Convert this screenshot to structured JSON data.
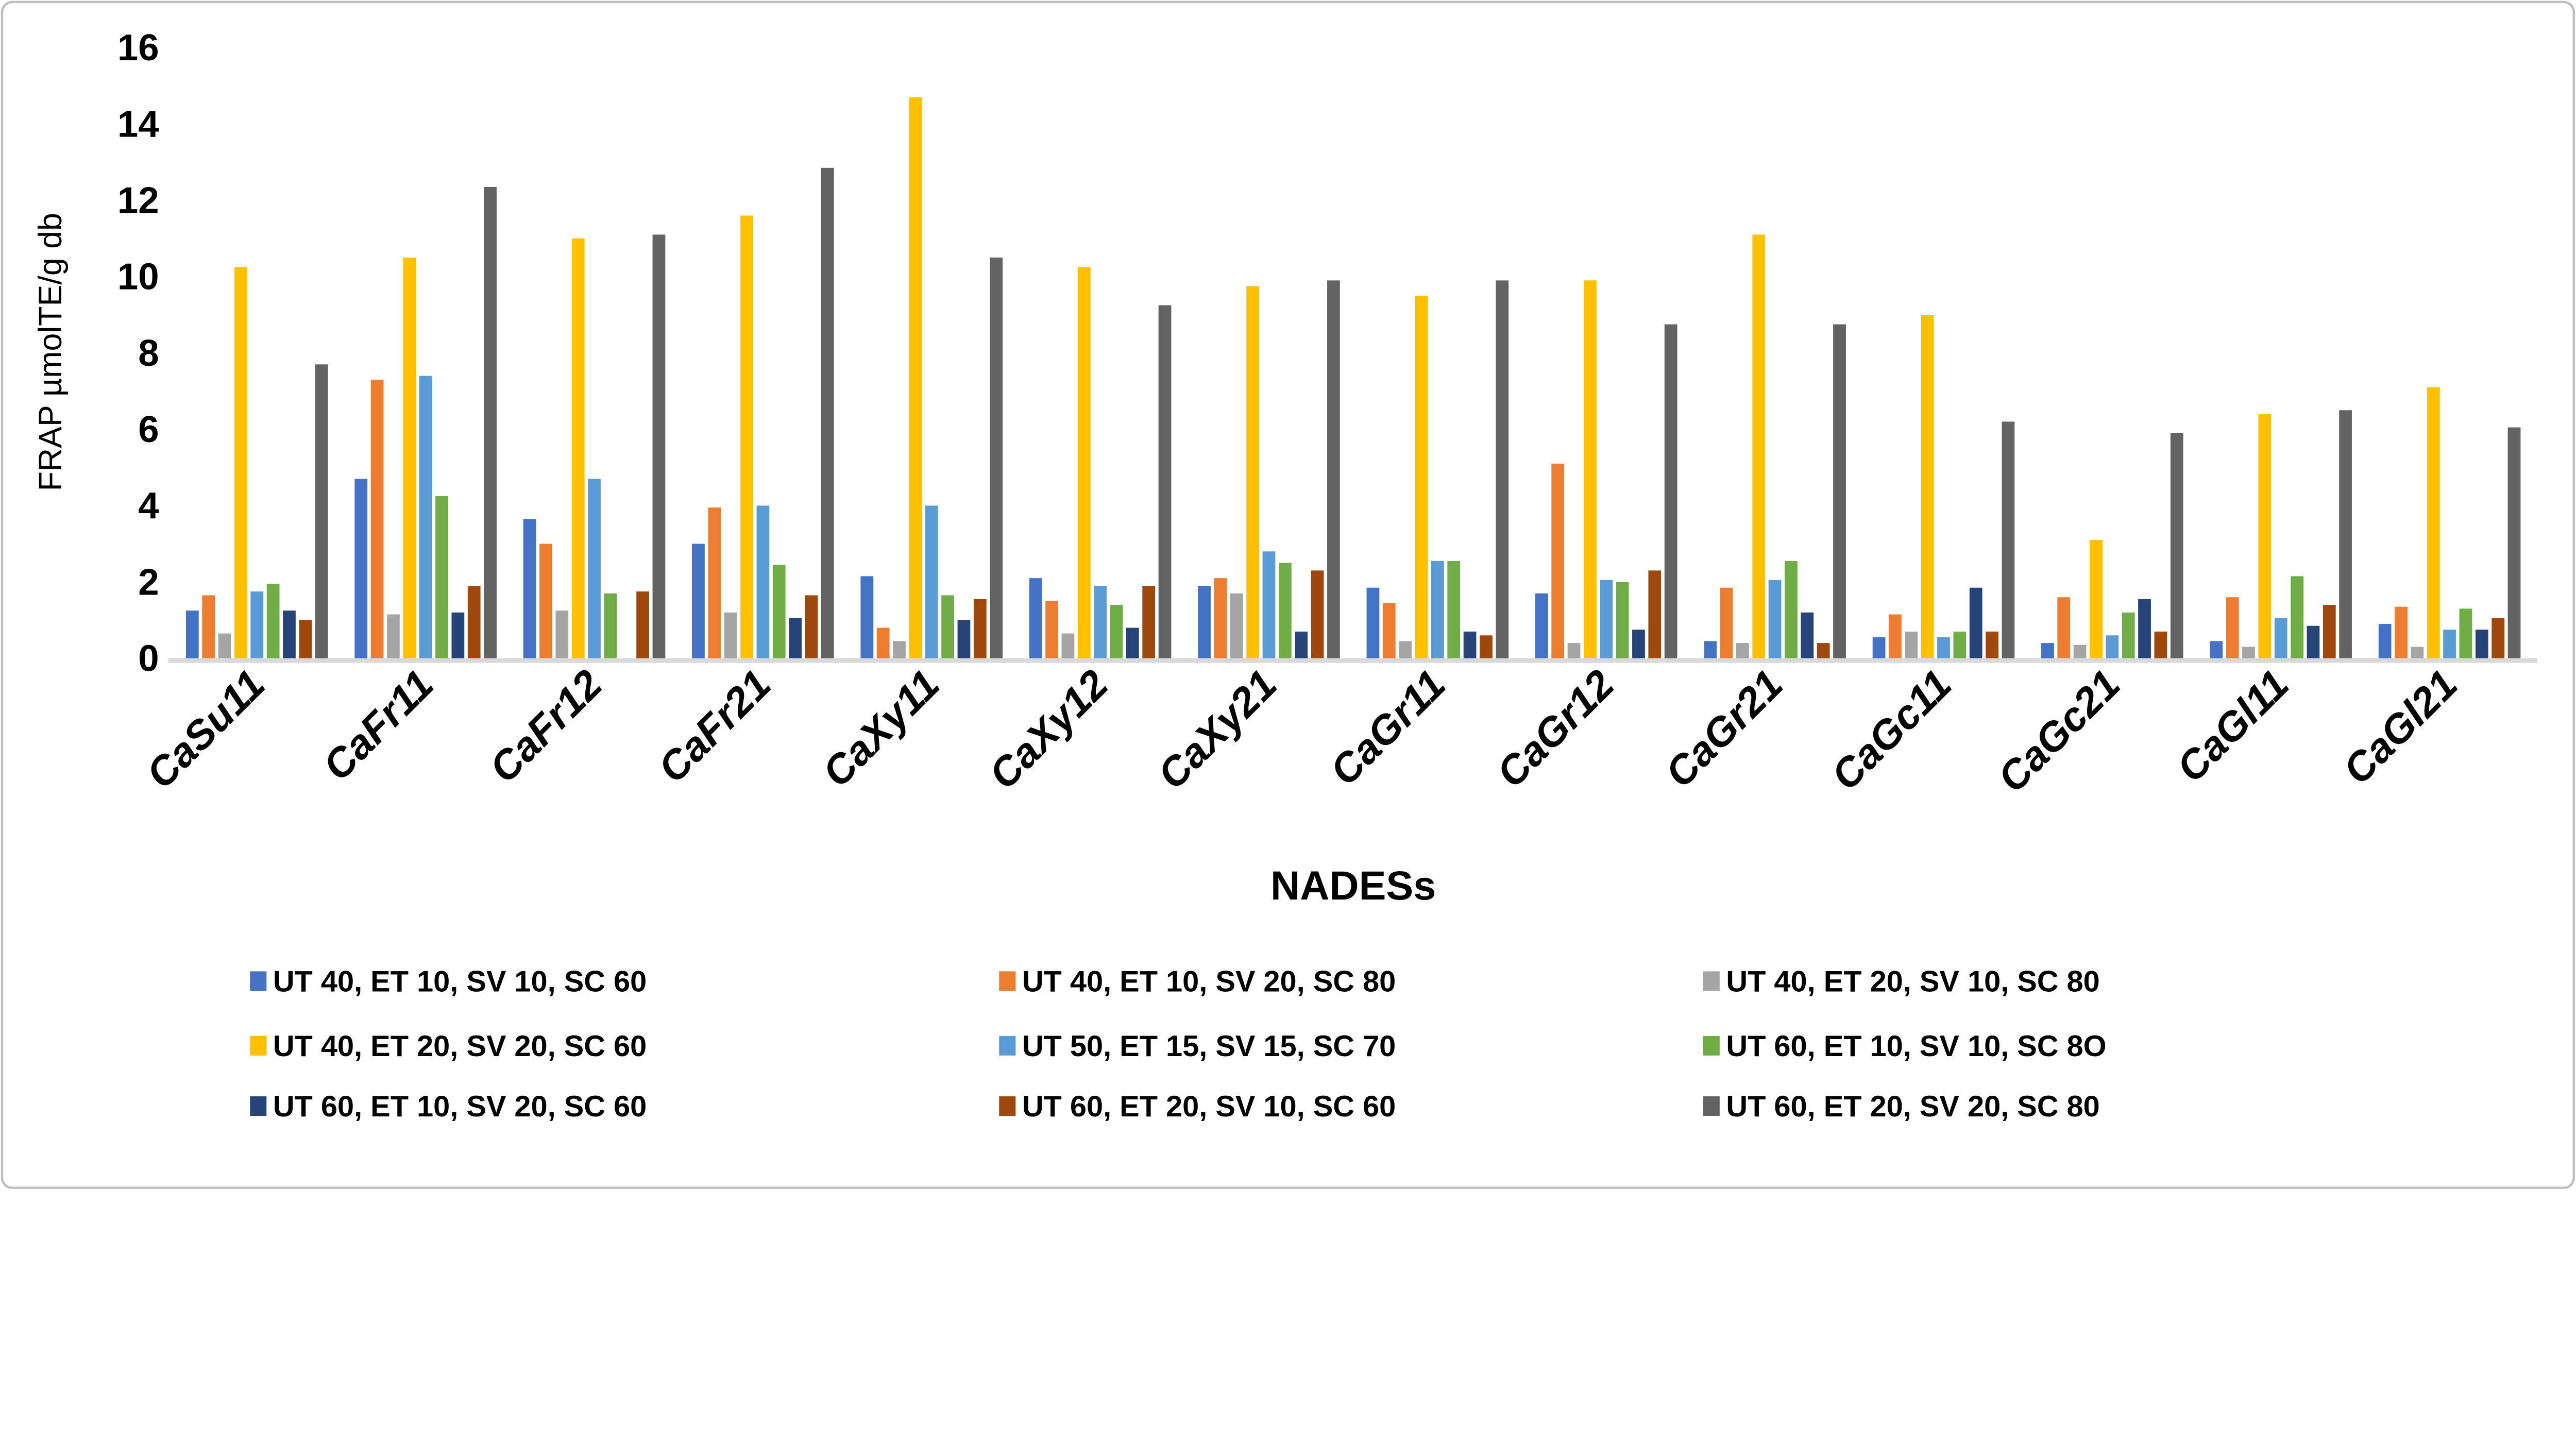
{
  "figure": {
    "background": "#ffffff",
    "border_color": "#bfbfbf"
  },
  "chart_data": {
    "type": "bar",
    "title": "",
    "xlabel": "NADESs",
    "ylabel": "FRAP µmolTE/g db",
    "ylim": [
      0,
      16
    ],
    "yticks": [
      0,
      2,
      4,
      6,
      8,
      10,
      12,
      14,
      16
    ],
    "grid": false,
    "legend_position": "bottom",
    "legend_columns": 3,
    "axis_line_color": "#d9d9d9",
    "categories": [
      "CaSu11",
      "CaFr11",
      "CaFr12",
      "CaFr21",
      "CaXy11",
      "CaXy12",
      "CaXy21",
      "CaGr11",
      "CaGr12",
      "CaGr21",
      "CaGc11",
      "CaGc21",
      "CaGl11",
      "CaGl21"
    ],
    "series": [
      {
        "name": "UT 40, ET 10, SV 10, SC 60",
        "color": "#4472c4",
        "values": [
          1.25,
          4.7,
          3.65,
          3.0,
          2.15,
          2.1,
          1.9,
          1.85,
          1.7,
          0.45,
          0.55,
          0.4,
          0.45,
          0.9
        ]
      },
      {
        "name": "UT 40, ET 10, SV 20, SC 80",
        "color": "#ed7d31",
        "values": [
          1.65,
          7.3,
          3.0,
          3.95,
          0.8,
          1.5,
          2.1,
          1.45,
          5.1,
          1.85,
          1.15,
          1.6,
          1.6,
          1.35
        ]
      },
      {
        "name": "UT 40, ET 20, SV 10, SC 80",
        "color": "#a5a5a5",
        "values": [
          0.65,
          1.15,
          1.25,
          1.2,
          0.45,
          0.65,
          1.7,
          0.45,
          0.4,
          0.4,
          0.7,
          0.35,
          0.3,
          0.3
        ]
      },
      {
        "name": "UT 40, ET 20, SV 20, SC 60",
        "color": "#ffc000",
        "values": [
          10.25,
          10.5,
          11.0,
          11.6,
          14.7,
          10.25,
          9.75,
          9.5,
          9.9,
          11.1,
          9.0,
          3.1,
          6.4,
          7.1
        ]
      },
      {
        "name": "UT 50, ET 15, SV 15, SC 70",
        "color": "#5b9bd5",
        "values": [
          1.75,
          7.4,
          4.7,
          4.0,
          4.0,
          1.9,
          2.8,
          2.55,
          2.05,
          2.05,
          0.55,
          0.6,
          1.05,
          0.75
        ]
      },
      {
        "name": "UT 60, ET 10, SV 10, SC 8O",
        "color": "#70ad47",
        "values": [
          1.95,
          4.25,
          1.7,
          2.45,
          1.65,
          1.4,
          2.5,
          2.55,
          2.0,
          2.55,
          0.7,
          1.2,
          2.15,
          1.3
        ]
      },
      {
        "name": "UT 60, ET 10, SV 20, SC 60",
        "color": "#264478",
        "values": [
          1.25,
          1.2,
          0,
          1.05,
          1.0,
          0.8,
          0.7,
          0.7,
          0.75,
          1.2,
          1.85,
          1.55,
          0.85,
          0.75
        ]
      },
      {
        "name": "UT 60, ET 20, SV 10, SC 60",
        "color": "#9e480e",
        "values": [
          1.0,
          1.9,
          1.75,
          1.65,
          1.55,
          1.9,
          2.3,
          0.6,
          2.3,
          0.4,
          0.7,
          0.7,
          1.4,
          1.05
        ]
      },
      {
        "name": "UT 60, ET 20, SV 20, SC 80",
        "color": "#636363",
        "values": [
          7.7,
          12.35,
          11.1,
          12.85,
          10.5,
          9.25,
          9.9,
          9.9,
          8.75,
          8.75,
          6.2,
          5.9,
          6.5,
          6.05
        ]
      }
    ]
  }
}
